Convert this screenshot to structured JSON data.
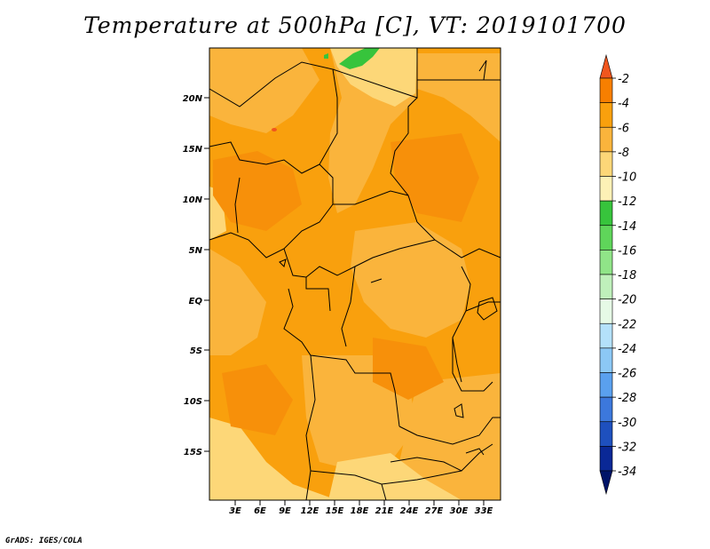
{
  "title": "Temperature at 500hPa [C], VT: 2019101700",
  "credit": "GrADS: IGES/COLA",
  "map": {
    "lat_ticks": [
      "20N",
      "15N",
      "10N",
      "5N",
      "EQ",
      "5S",
      "10S",
      "15S"
    ],
    "lon_ticks": [
      "3E",
      "6E",
      "9E",
      "12E",
      "15E",
      "18E",
      "21E",
      "24E",
      "27E",
      "30E",
      "33E"
    ]
  },
  "colorbar": {
    "labels": [
      "-2",
      "-4",
      "-6",
      "-8",
      "-10",
      "-12",
      "-14",
      "-16",
      "-18",
      "-20",
      "-22",
      "-24",
      "-26",
      "-28",
      "-30",
      "-32",
      "-34"
    ],
    "colors": [
      "#f0561e",
      "#f77f00",
      "#f9a00d",
      "#fab43c",
      "#fdd778",
      "#fdf1b6",
      "#37c43c",
      "#5fd55a",
      "#90e488",
      "#bff0bb",
      "#e6fae6",
      "#b4e1fa",
      "#8cc8f5",
      "#5aa0ee",
      "#3c78dc",
      "#1e50be",
      "#0a2896",
      "#001468"
    ]
  }
}
